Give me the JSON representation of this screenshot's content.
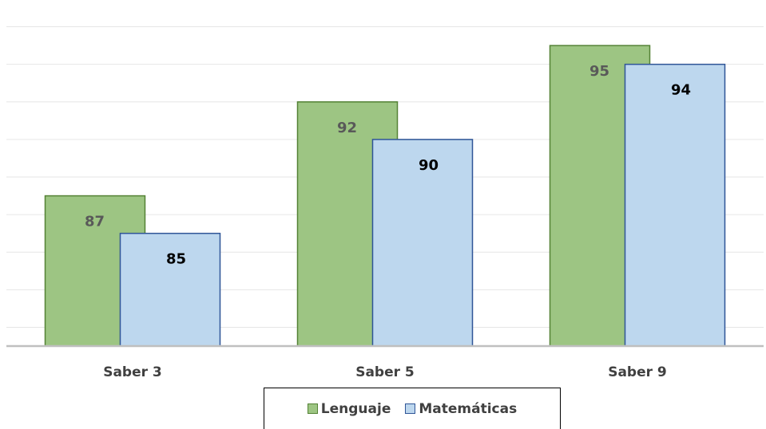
{
  "chart_data": {
    "type": "bar",
    "categories": [
      "Saber 3",
      "Saber 5",
      "Saber 9"
    ],
    "series": [
      {
        "name": "Lenguaje",
        "values": [
          87,
          92,
          95
        ],
        "labels": [
          "87",
          "92",
          "95"
        ],
        "fill": "#9dc583",
        "stroke": "#548235",
        "label_color": "#595959"
      },
      {
        "name": "Matemáticas",
        "values": [
          85,
          90,
          94
        ],
        "labels": [
          "85",
          "90",
          "94"
        ],
        "fill": "#bdd7ee",
        "stroke": "#2f5597",
        "label_color": "#000000"
      }
    ],
    "ylim": [
      79,
      97
    ],
    "y_gridlines": [
      80,
      82,
      84,
      86,
      88,
      90,
      92,
      94,
      96
    ],
    "grid": true,
    "legend": "bottom",
    "title": "",
    "xlabel": "",
    "ylabel": ""
  }
}
